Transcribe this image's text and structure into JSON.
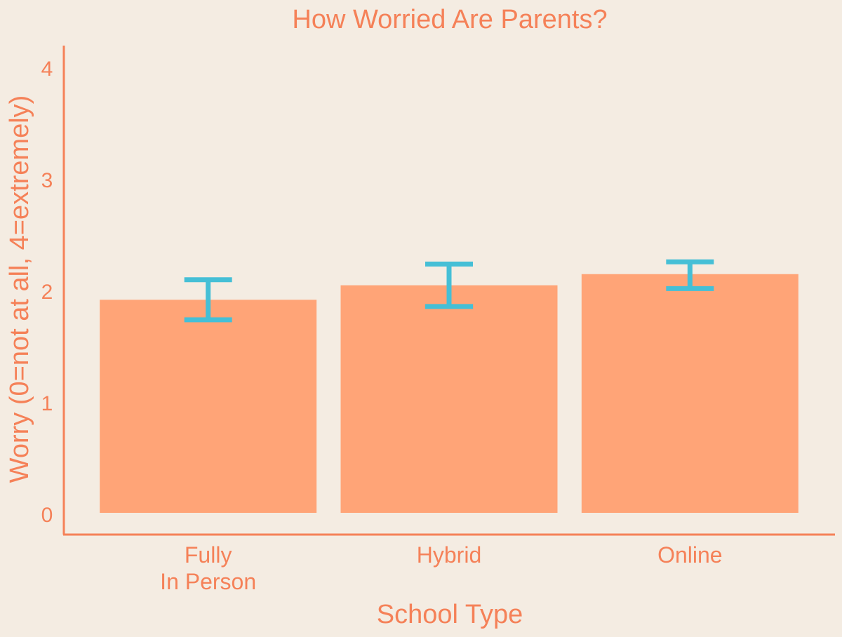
{
  "chart_data": {
    "type": "bar",
    "title": "How Worried Are Parents?",
    "xlabel": "School Type",
    "ylabel": "Worry (0=not at all, 4=extremely)",
    "categories": [
      [
        "Fully",
        "In Person"
      ],
      [
        "Hybrid"
      ],
      [
        "Online"
      ]
    ],
    "values": [
      1.91,
      2.04,
      2.14
    ],
    "error_low": [
      1.73,
      1.85,
      2.01
    ],
    "error_high": [
      2.09,
      2.23,
      2.25
    ],
    "ylim": [
      -0.2,
      4.2
    ],
    "yticks": [
      0,
      1,
      2,
      3,
      4
    ],
    "grid": false,
    "legend": "none",
    "colors": {
      "background": "#f4ece2",
      "bar": "#ffa477",
      "error_bar": "#45bfd6",
      "text": "#f58158",
      "axis": "#f58158"
    }
  }
}
